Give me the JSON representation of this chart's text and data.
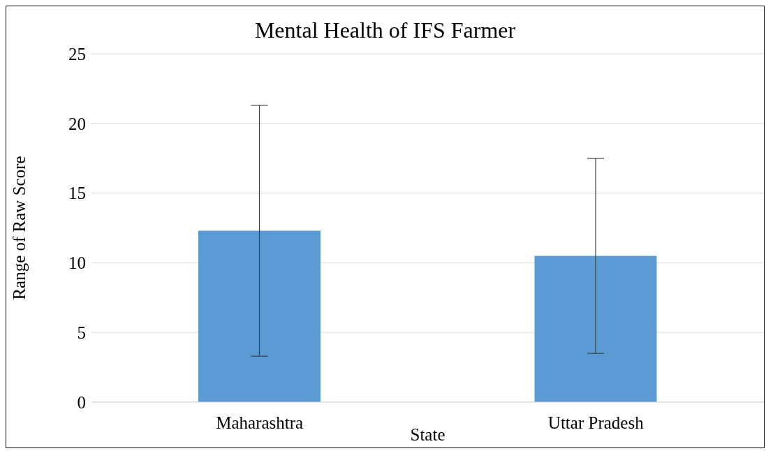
{
  "chart_data": {
    "type": "bar",
    "title": "Mental Health of IFS Farmer",
    "xlabel": "State",
    "ylabel": "Range of Raw Score",
    "categories": [
      "Maharashtra",
      "Uttar Pradesh"
    ],
    "values": [
      12.3,
      10.5
    ],
    "errors": [
      9.0,
      7.0
    ],
    "color": "#5b9bd5",
    "ylim": [
      0,
      25
    ],
    "yticks": [
      0,
      5,
      10,
      15,
      20,
      25
    ],
    "grid": "y"
  }
}
